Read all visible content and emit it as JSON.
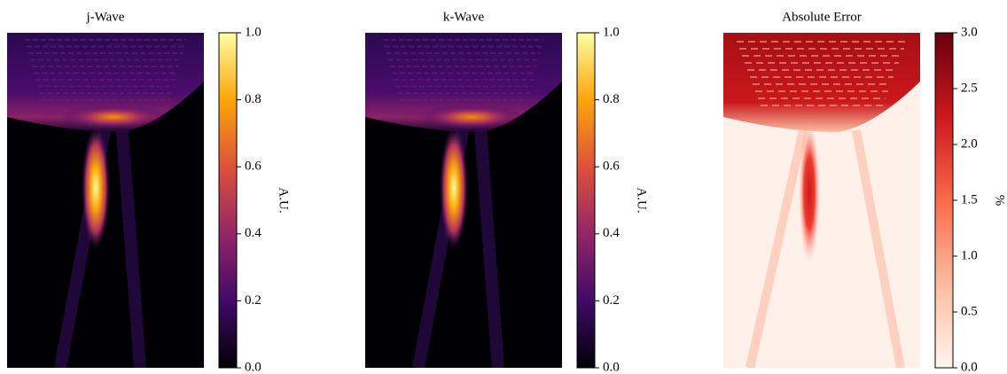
{
  "chart_data": [
    {
      "type": "heatmap",
      "title": "j-Wave",
      "colorbar": {
        "label": "A.U.",
        "colormap": "inferno",
        "lim": [
          0,
          1
        ],
        "ticks": [
          {
            "value": 0,
            "label": "0.0"
          },
          0.2,
          0.4,
          0.6,
          0.8,
          {
            "value": 1,
            "label": "1.0"
          }
        ]
      }
    },
    {
      "type": "heatmap",
      "title": "k-Wave",
      "colorbar": {
        "label": "A.U.",
        "colormap": "inferno",
        "lim": [
          0,
          1
        ],
        "ticks": [
          {
            "value": 0,
            "label": "0.0"
          },
          0.2,
          0.4,
          0.6,
          0.8,
          {
            "value": 1,
            "label": "1.0"
          }
        ]
      }
    },
    {
      "type": "heatmap",
      "title": "Absolute Error",
      "colorbar": {
        "label": "%",
        "colormap": "reds",
        "lim": [
          0,
          3
        ],
        "ticks": [
          {
            "value": 0,
            "label": "0.0"
          },
          0.5,
          {
            "value": 1,
            "label": "1.0"
          },
          1.5,
          {
            "value": 2,
            "label": "2.0"
          },
          2.5,
          {
            "value": 3,
            "label": "3.0"
          }
        ]
      }
    }
  ]
}
